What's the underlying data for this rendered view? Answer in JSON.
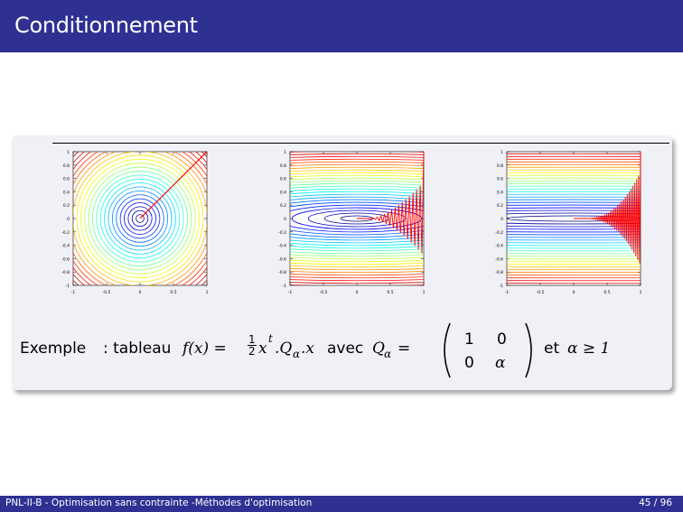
{
  "slide": {
    "title": "Conditionnement",
    "example": {
      "label": "Exemple",
      "colon": ": tableau",
      "f_lhs": "f(x) = ",
      "half_num": "1",
      "half_den": "2",
      "f_rhs": "x",
      "sup_t": "t",
      "f_rest": ".Q",
      "sub_alpha": "α",
      "f_rest2": ".x",
      "avec": "avec",
      "Q": "Q",
      "eq": "=",
      "et": "et",
      "alpha_cond": "α ≥ 1",
      "matrix": [
        "1",
        "0",
        "0",
        "α"
      ]
    },
    "plots": [
      {
        "name": "alpha-1",
        "ytick_labels": [
          "1",
          "0.8",
          "0.6",
          "0.4",
          "0.2",
          "0",
          "-0.2",
          "-0.4",
          "-0.6",
          "-0.8",
          "-1"
        ],
        "xtick_labels": [
          "-1",
          "-0.5",
          "0",
          "0.5",
          "1"
        ]
      },
      {
        "name": "alpha-medium",
        "ytick_labels": [
          "1",
          "0.8",
          "0.6",
          "0.4",
          "0.2",
          "0",
          "-0.2",
          "-0.4",
          "-0.6",
          "-0.8",
          "-1"
        ],
        "xtick_labels": [
          "-1",
          "-0.5",
          "0",
          "0.5",
          "1"
        ]
      },
      {
        "name": "alpha-large",
        "ytick_labels": [
          "1",
          "0.8",
          "0.6",
          "0.4",
          "0.2",
          "0",
          "-0.2",
          "-0.4",
          "-0.6",
          "-0.8",
          "-1"
        ],
        "xtick_labels": [
          "-1",
          "-0.5",
          "0",
          "0.5",
          "1"
        ]
      }
    ],
    "footer_left": "PNL-II-B - Optimisation sans contrainte -Méthodes d'optimisation",
    "footer_right": "45 / 96",
    "colors": {
      "bar": "#2e3192",
      "path": "#ff0000"
    }
  }
}
